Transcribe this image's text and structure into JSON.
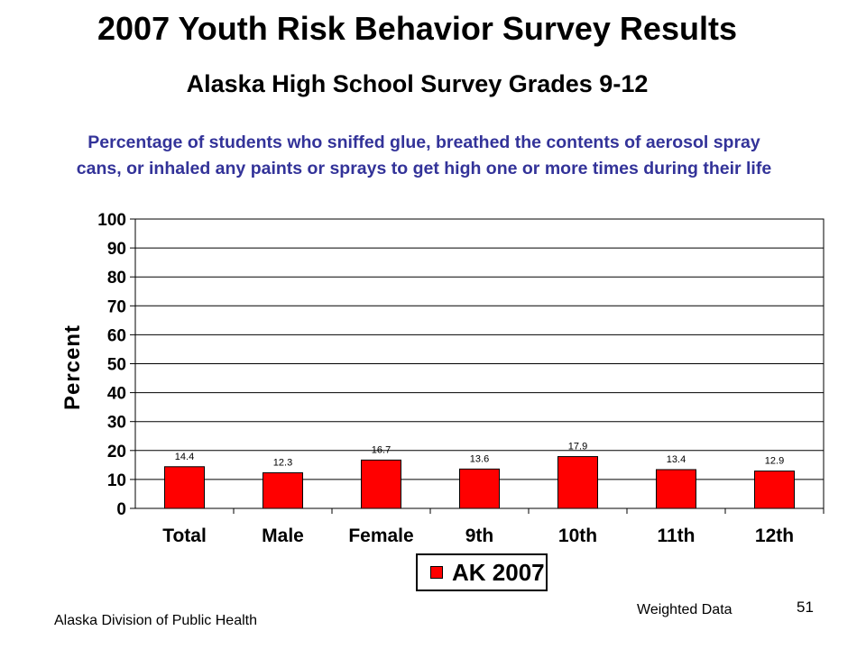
{
  "slide": {
    "title": "2007 Youth Risk Behavior Survey Results",
    "subtitle": "Alaska High School Survey Grades 9-12",
    "footer_left": "Alaska Division of Public Health",
    "footer_right": "Weighted Data",
    "page_number": "51"
  },
  "chart_data": {
    "type": "bar",
    "title": "Percentage of students who sniffed glue, breathed the contents of aerosol spray cans, or inhaled any paints or sprays to get high one or more times during their life",
    "ylabel": "Percent",
    "xlabel": "",
    "ylim": [
      0,
      100
    ],
    "yticks": [
      0,
      10,
      20,
      30,
      40,
      50,
      60,
      70,
      80,
      90,
      100
    ],
    "categories": [
      "Total",
      "Male",
      "Female",
      "9th",
      "10th",
      "11th",
      "12th"
    ],
    "series": [
      {
        "name": "AK 2007",
        "color": "#ff0000",
        "values": [
          14.4,
          12.3,
          16.7,
          13.6,
          17.9,
          13.4,
          12.9
        ],
        "labels": [
          "14.4",
          "12.3",
          "16.7",
          "13.6",
          "17.9",
          "13.4",
          "12.9"
        ]
      }
    ],
    "grid": true,
    "legend": "bottom"
  }
}
